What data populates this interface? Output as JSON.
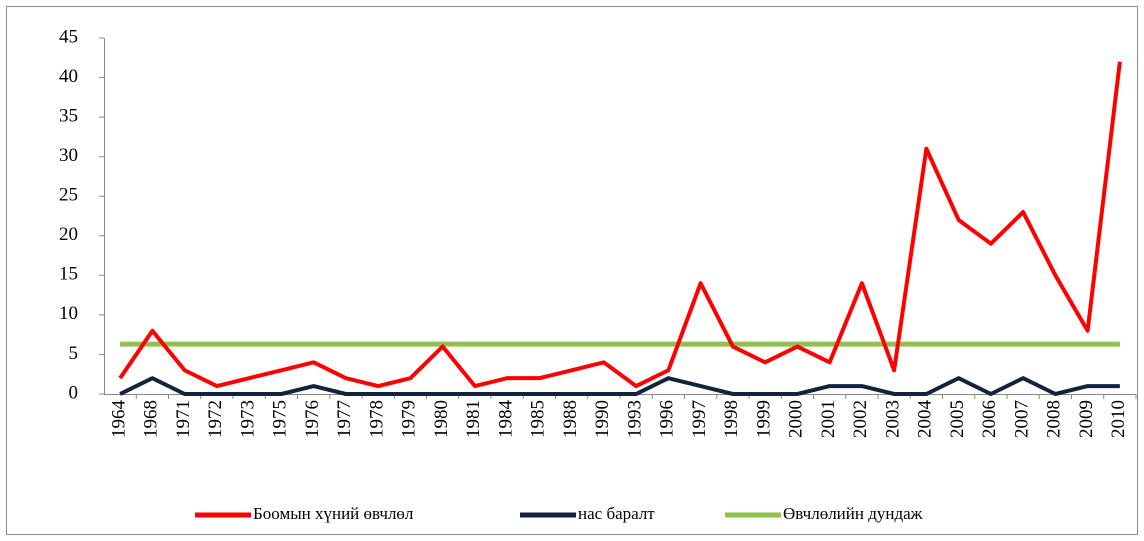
{
  "chart_data": {
    "type": "line",
    "categories": [
      "1964",
      "1968",
      "1971",
      "1972",
      "1973",
      "1975",
      "1976",
      "1977",
      "1978",
      "1979",
      "1980",
      "1981",
      "1984",
      "1985",
      "1988",
      "1990",
      "1993",
      "1996",
      "1997",
      "1998",
      "1999",
      "2000",
      "2001",
      "2002",
      "2003",
      "2004",
      "2005",
      "2006",
      "2007",
      "2008",
      "2009",
      "2010"
    ],
    "series": [
      {
        "name": "Боомын хүний өвчлөл",
        "color": "#ff0000",
        "values": [
          2,
          8,
          3,
          1,
          2,
          3,
          4,
          2,
          1,
          2,
          6,
          1,
          2,
          2,
          3,
          4,
          1,
          3,
          14,
          6,
          4,
          6,
          4,
          14,
          3,
          31,
          22,
          19,
          23,
          15,
          8,
          42
        ]
      },
      {
        "name": "нас баралт",
        "color": "#13233b",
        "values": [
          0,
          2,
          0,
          0,
          0,
          0,
          1,
          0,
          0,
          0,
          0,
          0,
          0,
          0,
          0,
          0,
          0,
          2,
          1,
          0,
          0,
          0,
          1,
          1,
          0,
          0,
          2,
          0,
          2,
          0,
          1,
          1
        ]
      },
      {
        "name": "Өвчлөлийн дундаж",
        "color": "#92c04c",
        "values": [
          6.3,
          6.3,
          6.3,
          6.3,
          6.3,
          6.3,
          6.3,
          6.3,
          6.3,
          6.3,
          6.3,
          6.3,
          6.3,
          6.3,
          6.3,
          6.3,
          6.3,
          6.3,
          6.3,
          6.3,
          6.3,
          6.3,
          6.3,
          6.3,
          6.3,
          6.3,
          6.3,
          6.3,
          6.3,
          6.3,
          6.3,
          6.3
        ]
      }
    ],
    "ylim": [
      0,
      45
    ],
    "yticks": [
      0,
      5,
      10,
      15,
      20,
      25,
      30,
      35,
      40,
      45
    ],
    "legend": "bottom"
  }
}
